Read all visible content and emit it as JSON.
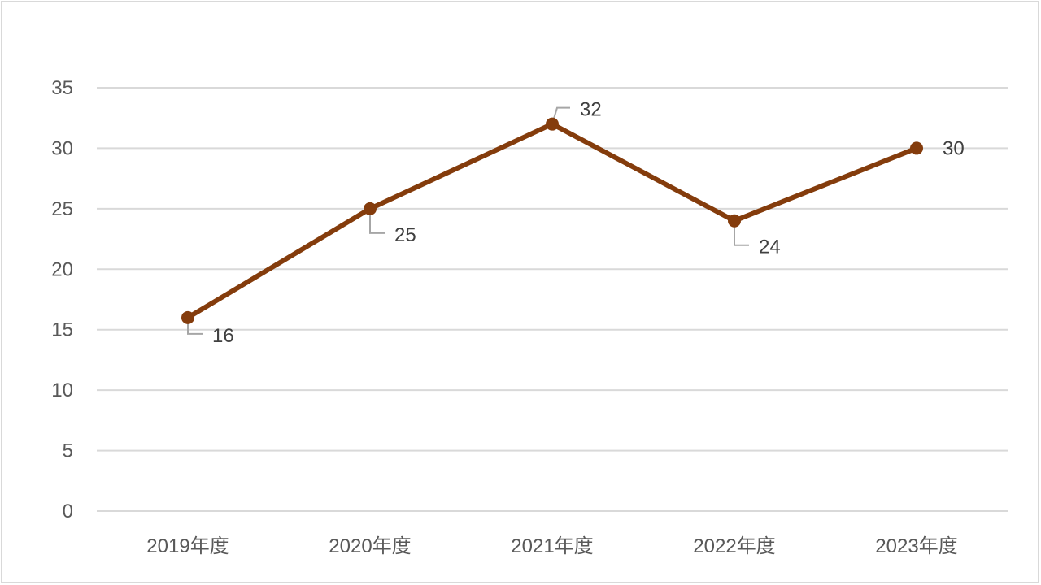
{
  "chart_data": {
    "type": "line",
    "categories": [
      "2019年度",
      "2020年度",
      "2021年度",
      "2022年度",
      "2023年度"
    ],
    "series": [
      {
        "values": [
          16,
          25,
          32,
          24,
          30
        ]
      }
    ],
    "data_labels": [
      "16",
      "25",
      "32",
      "24",
      "30"
    ],
    "ylim": [
      0,
      35
    ],
    "yticks": [
      0,
      5,
      10,
      15,
      20,
      25,
      30,
      35
    ],
    "ytick_labels": [
      "0",
      "5",
      "10",
      "15",
      "20",
      "25",
      "30",
      "35"
    ],
    "grid": true,
    "legend": "none",
    "colors": {
      "line": "#843c0c",
      "grid": "#d9d9d9",
      "leader": "#a6a6a6"
    }
  }
}
